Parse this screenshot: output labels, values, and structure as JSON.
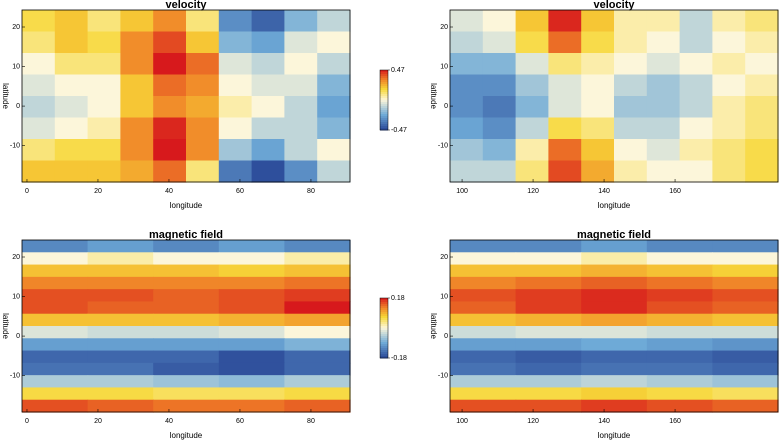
{
  "chart_data": [
    {
      "type": "heatmap",
      "title": "velocity",
      "x_label": "longitude",
      "y_label": "latitude",
      "xlim": [
        -1.4,
        91
      ],
      "ylim": [
        -19.2,
        24.3
      ],
      "xticks": [
        0,
        20,
        40,
        60,
        80
      ],
      "yticks": [
        -10,
        0,
        10,
        20
      ],
      "zlim": [
        -0.47,
        0.47
      ],
      "colorbar_ticks": [
        0.47,
        -0.47
      ],
      "z": [
        [
          0.15,
          0.2,
          0.1,
          0.2,
          0.3,
          0.1,
          -0.3,
          -0.4,
          -0.2,
          -0.1
        ],
        [
          0.1,
          0.2,
          0.15,
          0.3,
          0.4,
          0.2,
          -0.2,
          -0.25,
          -0.05,
          0.0
        ],
        [
          0.0,
          0.1,
          0.1,
          0.3,
          0.47,
          0.35,
          -0.05,
          -0.1,
          0.0,
          -0.1
        ],
        [
          -0.05,
          0.0,
          0.0,
          0.2,
          0.35,
          0.3,
          0.0,
          -0.05,
          -0.05,
          -0.2
        ],
        [
          -0.1,
          -0.05,
          0.0,
          0.2,
          0.3,
          0.25,
          0.05,
          0.0,
          -0.1,
          -0.25
        ],
        [
          -0.05,
          0.0,
          0.05,
          0.3,
          0.45,
          0.3,
          0.0,
          -0.1,
          -0.1,
          -0.2
        ],
        [
          0.1,
          0.15,
          0.15,
          0.3,
          0.47,
          0.3,
          -0.15,
          -0.25,
          -0.1,
          0.0
        ],
        [
          0.2,
          0.2,
          0.2,
          0.25,
          0.35,
          0.1,
          -0.35,
          -0.45,
          -0.3,
          -0.1
        ]
      ]
    },
    {
      "type": "heatmap",
      "title": "velocity",
      "x_label": "longitude",
      "y_label": "latitude",
      "xlim": [
        96.6,
        189
      ],
      "ylim": [
        -19.2,
        24.3
      ],
      "xticks": [
        100,
        120,
        140,
        160
      ],
      "yticks": [
        -10,
        0,
        10,
        20
      ],
      "zlim": [
        -0.47,
        0.47
      ],
      "z": [
        [
          -0.05,
          0.0,
          0.2,
          0.45,
          0.2,
          0.05,
          0.05,
          -0.1,
          0.05,
          0.1
        ],
        [
          -0.1,
          -0.05,
          0.15,
          0.35,
          0.15,
          0.05,
          0.0,
          -0.1,
          0.0,
          0.05
        ],
        [
          -0.2,
          -0.2,
          -0.05,
          0.1,
          0.05,
          0.0,
          -0.05,
          0.0,
          0.05,
          0.0
        ],
        [
          -0.3,
          -0.3,
          -0.15,
          -0.05,
          0.0,
          -0.1,
          -0.15,
          -0.1,
          0.0,
          0.05
        ],
        [
          -0.3,
          -0.35,
          -0.2,
          -0.05,
          0.0,
          -0.15,
          -0.15,
          -0.1,
          0.05,
          0.1
        ],
        [
          -0.25,
          -0.3,
          -0.1,
          0.15,
          0.1,
          -0.1,
          -0.1,
          0.0,
          0.05,
          0.1
        ],
        [
          -0.15,
          -0.2,
          0.05,
          0.35,
          0.2,
          0.0,
          -0.05,
          0.05,
          0.1,
          0.15
        ],
        [
          -0.1,
          -0.1,
          0.1,
          0.4,
          0.25,
          0.05,
          0.0,
          0.0,
          0.1,
          0.15
        ]
      ]
    },
    {
      "type": "heatmap",
      "title": "magnetic field",
      "x_label": "longitude",
      "y_label": "latitude",
      "xlim": [
        -1.4,
        91
      ],
      "ylim": [
        -19.2,
        24.3
      ],
      "xticks": [
        0,
        20,
        40,
        60,
        80
      ],
      "yticks": [
        -10,
        0,
        10,
        20
      ],
      "zlim": [
        -0.18,
        0.18
      ],
      "colorbar_ticks": [
        0.18,
        -0.18
      ],
      "z": [
        [
          -0.12,
          -0.1,
          -0.12,
          -0.1,
          -0.12
        ],
        [
          0.0,
          0.02,
          0.0,
          0.0,
          0.02
        ],
        [
          0.08,
          0.08,
          0.08,
          0.07,
          0.08
        ],
        [
          0.12,
          0.12,
          0.12,
          0.12,
          0.13
        ],
        [
          0.15,
          0.15,
          0.14,
          0.15,
          0.16
        ],
        [
          0.15,
          0.14,
          0.14,
          0.15,
          0.18
        ],
        [
          0.08,
          0.08,
          0.08,
          0.09,
          0.1
        ],
        [
          -0.02,
          -0.03,
          -0.03,
          -0.02,
          0.0
        ],
        [
          -0.1,
          -0.1,
          -0.1,
          -0.1,
          -0.08
        ],
        [
          -0.15,
          -0.15,
          -0.15,
          -0.17,
          -0.15
        ],
        [
          -0.14,
          -0.14,
          -0.16,
          -0.17,
          -0.15
        ],
        [
          -0.05,
          -0.05,
          -0.06,
          -0.07,
          -0.05
        ],
        [
          0.06,
          0.06,
          0.05,
          0.05,
          0.06
        ],
        [
          0.15,
          0.14,
          0.13,
          0.13,
          0.14
        ]
      ]
    },
    {
      "type": "heatmap",
      "title": "magnetic field",
      "x_label": "longitude",
      "y_label": "latitude",
      "xlim": [
        96.6,
        189
      ],
      "ylim": [
        -19.2,
        24.3
      ],
      "xticks": [
        100,
        120,
        140,
        160
      ],
      "yticks": [
        -10,
        0,
        10,
        20
      ],
      "zlim": [
        -0.18,
        0.18
      ],
      "z": [
        [
          -0.12,
          -0.12,
          -0.1,
          -0.12,
          -0.12
        ],
        [
          0.0,
          0.0,
          0.02,
          0.0,
          0.0
        ],
        [
          0.08,
          0.08,
          0.09,
          0.08,
          0.07
        ],
        [
          0.12,
          0.13,
          0.14,
          0.13,
          0.12
        ],
        [
          0.15,
          0.16,
          0.17,
          0.16,
          0.15
        ],
        [
          0.14,
          0.16,
          0.17,
          0.15,
          0.14
        ],
        [
          0.08,
          0.09,
          0.1,
          0.09,
          0.08
        ],
        [
          -0.03,
          -0.02,
          -0.02,
          -0.03,
          -0.03
        ],
        [
          -0.1,
          -0.1,
          -0.09,
          -0.1,
          -0.11
        ],
        [
          -0.15,
          -0.16,
          -0.15,
          -0.15,
          -0.16
        ],
        [
          -0.14,
          -0.15,
          -0.14,
          -0.14,
          -0.15
        ],
        [
          -0.05,
          -0.05,
          -0.04,
          -0.05,
          -0.06
        ],
        [
          0.06,
          0.06,
          0.07,
          0.06,
          0.05
        ],
        [
          0.15,
          0.15,
          0.16,
          0.15,
          0.14
        ]
      ]
    }
  ]
}
